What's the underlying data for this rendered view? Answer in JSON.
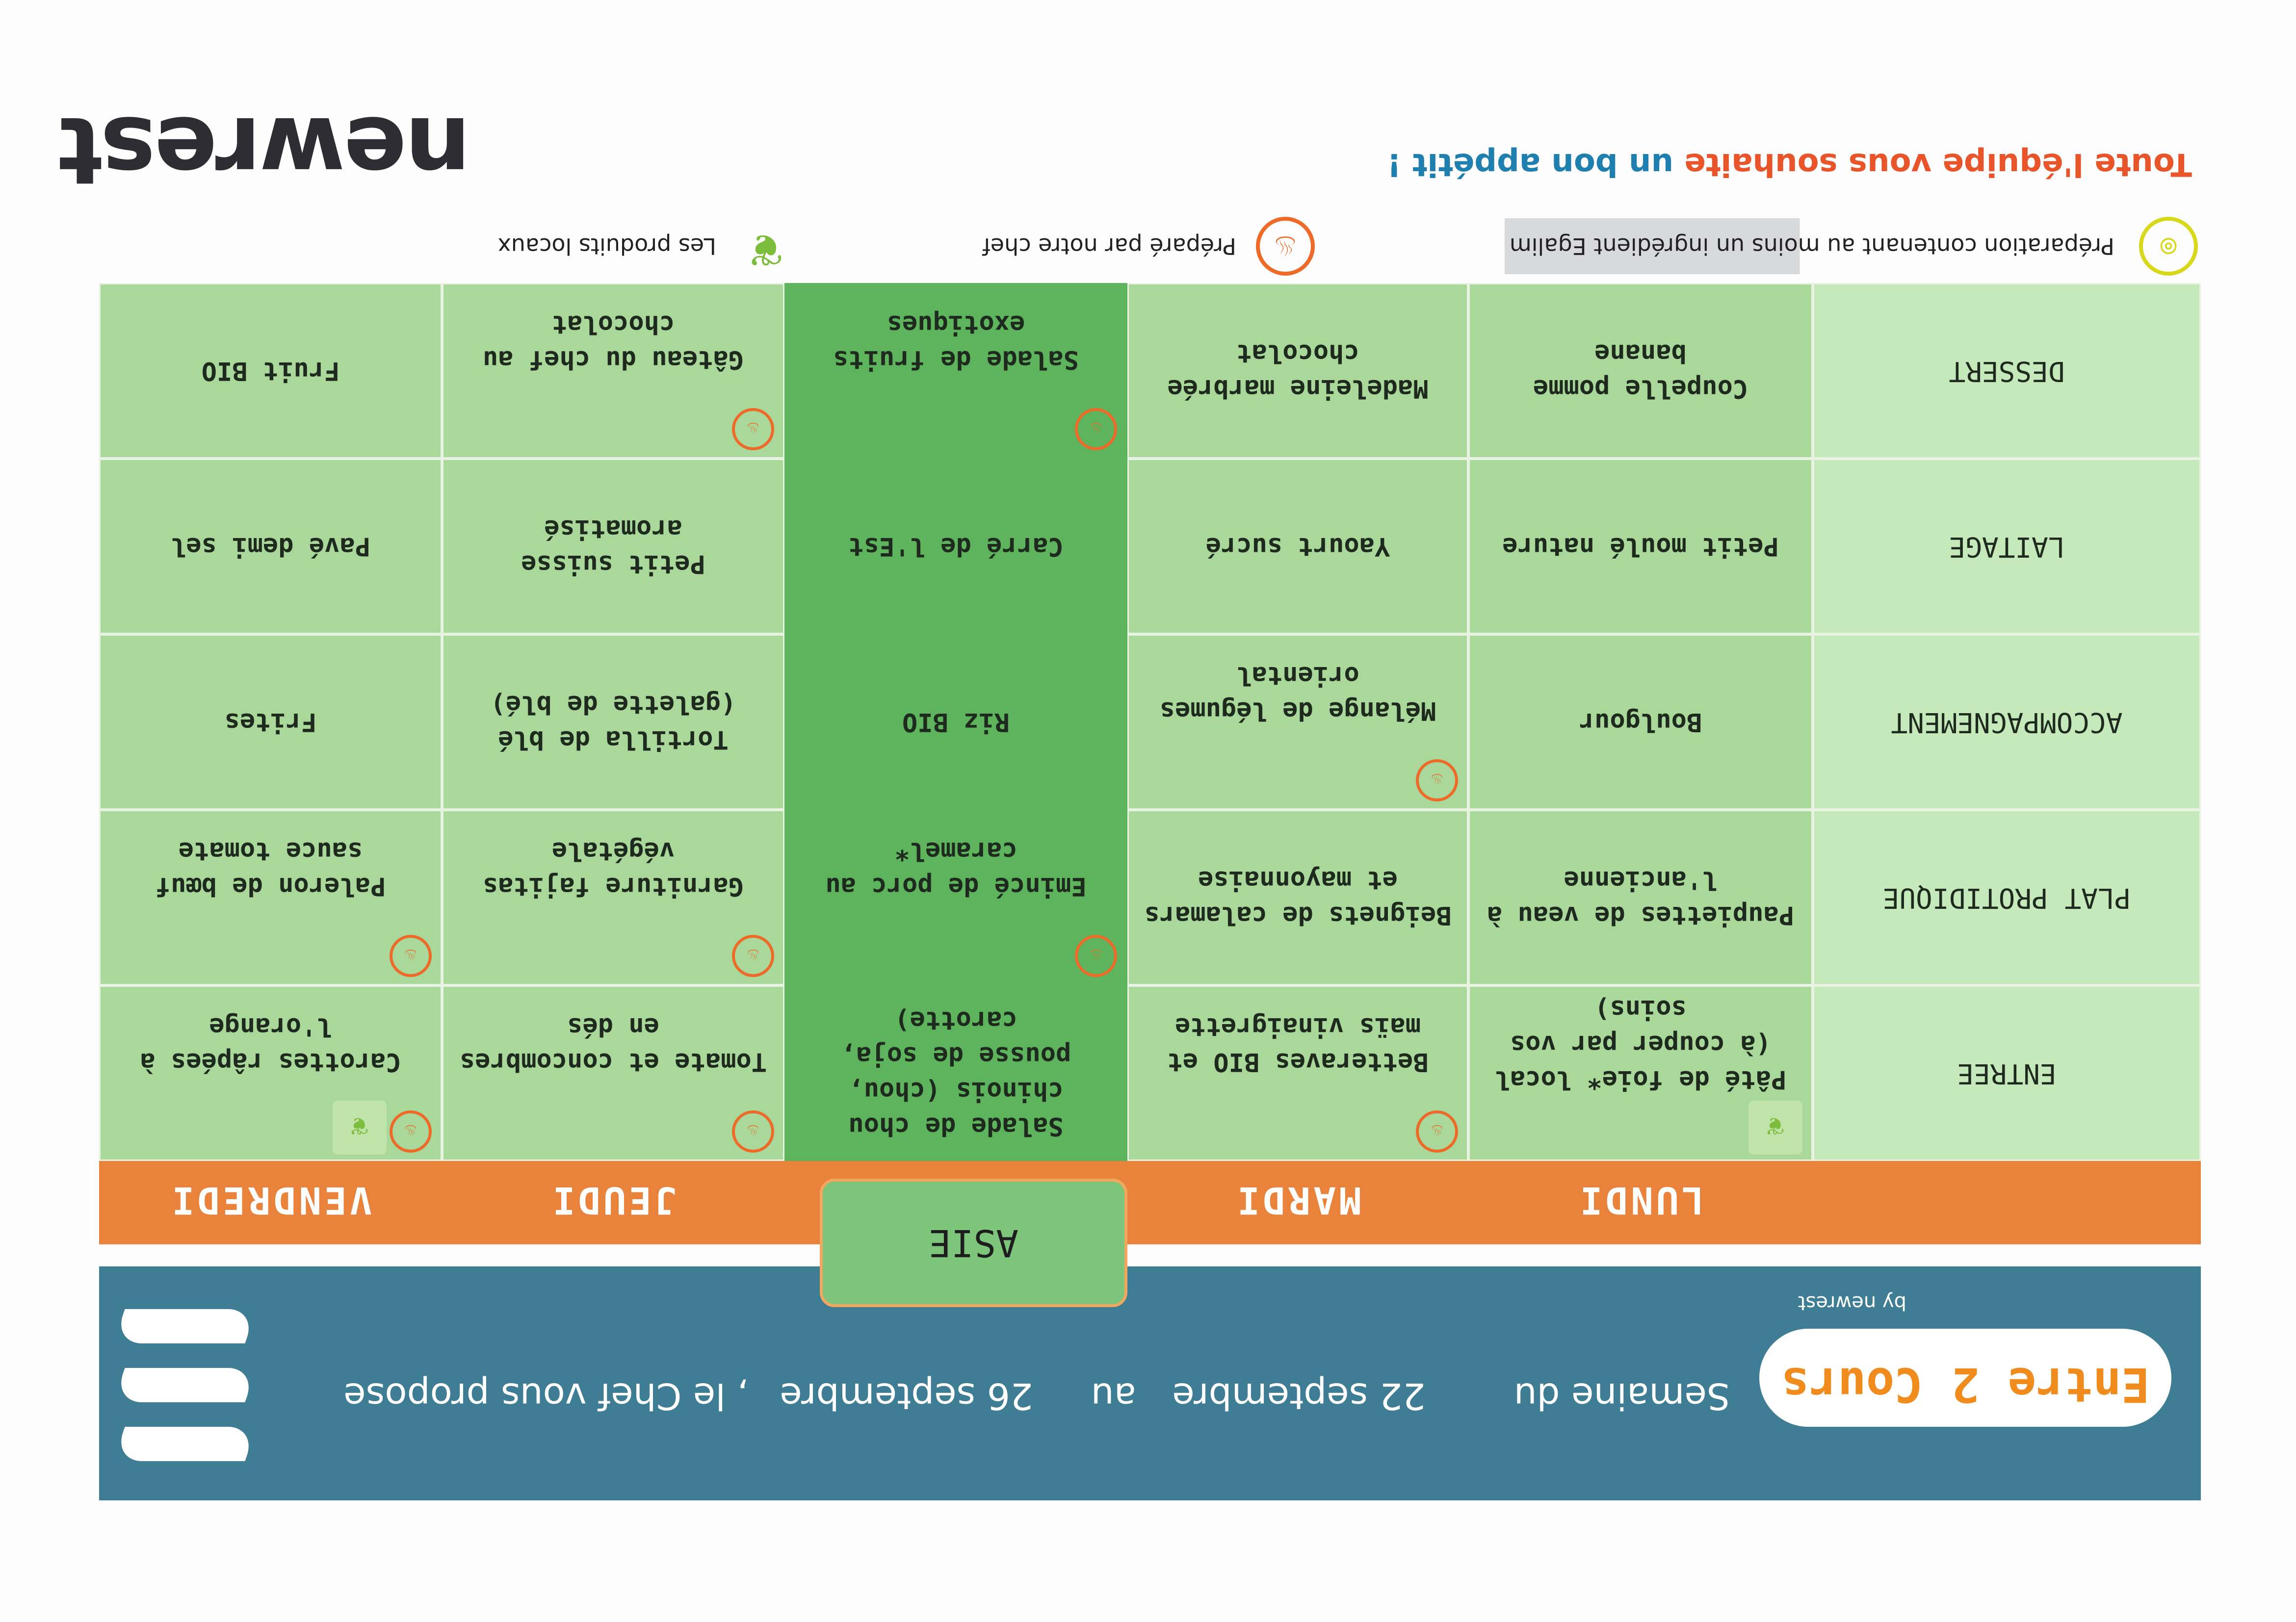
{
  "banner": {
    "brand": "Entre 2 Cours",
    "brand_by": "by newrest",
    "week_label": "Semaine du",
    "date_from": "22 septembre",
    "to_label": "au",
    "date_to": "26 septembre",
    "suffix": ", le Chef vous propose"
  },
  "days": [
    "LUNDI",
    "MARDI",
    "ASIE",
    "JEUDI",
    "VENDREDI"
  ],
  "rows": [
    {
      "label": "ENTREE",
      "cells": [
        {
          "text": "Pâté de foie* local (à couper par vos soins)",
          "icons": [
            "local"
          ]
        },
        {
          "text": "Betteraves BIO et maïs vinaigrette",
          "icons": [
            "chef"
          ]
        },
        {
          "text": "Salade de chou chinois (chou, pousse de soja, carotte)",
          "icons": []
        },
        {
          "text": "Tomate et concombres en dés",
          "icons": [
            "chef"
          ]
        },
        {
          "text": "Carottes râpées à l'orange",
          "icons": [
            "chef",
            "local"
          ]
        }
      ]
    },
    {
      "label": "PLAT PROTIDIQUE",
      "cells": [
        {
          "text": "Paupiettes de veau à l'ancienne",
          "icons": []
        },
        {
          "text": "Beignets de calamars et mayonnaise",
          "icons": []
        },
        {
          "text": "Emincé de porc au caramel*",
          "icons": [
            "chef"
          ]
        },
        {
          "text": "Garniture fajitas végétale",
          "icons": [
            "chef"
          ]
        },
        {
          "text": "Paleron de bœuf sauce tomate",
          "icons": [
            "chef"
          ]
        }
      ]
    },
    {
      "label": "ACCOMPAGNEMENT",
      "cells": [
        {
          "text": "Boulgour",
          "icons": []
        },
        {
          "text": "Mélange de légumes oriental",
          "icons": [
            "chef"
          ]
        },
        {
          "text": "Riz BIO",
          "icons": []
        },
        {
          "text": "Tortilla de blé (galette de blé)",
          "icons": []
        },
        {
          "text": "Frites",
          "icons": []
        }
      ]
    },
    {
      "label": "LAITAGE",
      "cells": [
        {
          "text": "Petit moulé nature",
          "icons": []
        },
        {
          "text": "Yaourt sucré",
          "icons": []
        },
        {
          "text": "Carré de l'Est",
          "icons": []
        },
        {
          "text": "Petit suisse aromatisé",
          "icons": []
        },
        {
          "text": "Pavé demi sel",
          "icons": []
        }
      ]
    },
    {
      "label": "DESSERT",
      "cells": [
        {
          "text": "Coupelle pomme banane",
          "icons": []
        },
        {
          "text": "Madeleine marbrée chocolat",
          "icons": []
        },
        {
          "text": "Salade de fruits exotiques",
          "icons": [
            "chef"
          ]
        },
        {
          "text": "Gâteau du chef au chocolat",
          "icons": [
            "chef"
          ]
        },
        {
          "text": "Fruit BIO",
          "icons": []
        }
      ]
    }
  ],
  "legend": {
    "egalim": "Préparation contenant au moins un ingrédient Egalim",
    "chef": "Préparé par notre chef",
    "local": "Les produits locaux"
  },
  "footer": {
    "message_orange": "Toute l'équipe vous souhaite",
    "message_blue": "un bon appétit !",
    "logo": "newrest"
  },
  "colors": {
    "banner": "#3f7d95",
    "day_bar": "#e9823a",
    "cell": "#a9d89a",
    "label_cell": "#c5e9bb",
    "asie_column": "#5db45c",
    "chef_icon": "#ee6a28",
    "egalim_icon": "#d8d81a",
    "message_orange": "#e8552a",
    "message_blue": "#1f7fae"
  }
}
